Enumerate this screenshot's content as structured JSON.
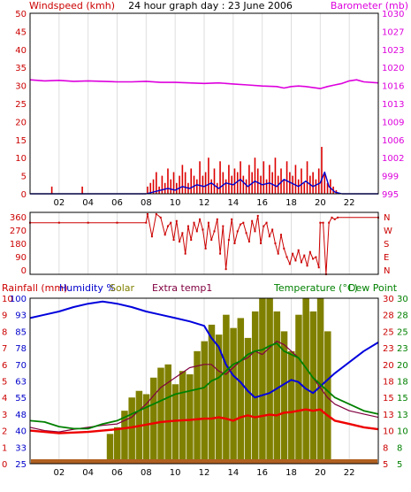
{
  "title": "24 hour graph day : 23 June 2006",
  "colors": {
    "panel_bg": "#ffffff",
    "grid_v": "#dedede",
    "frame": "#000000",
    "wind": "#dd0000",
    "wind_avg": "#0000cc",
    "barometer": "#dd00dd",
    "direction": "#cc0000",
    "rain": "#b06020",
    "humidity": "#0000dd",
    "solar": "#808000",
    "extra_temp": "#800040",
    "temperature": "#ee0000",
    "dew_point": "#008000",
    "label_red": "#cc0000",
    "label_blue": "#0000cc",
    "label_green": "#008000",
    "label_olive": "#808000",
    "label_purple": "#800040",
    "label_magenta": "#dd00dd"
  },
  "x_ticks": [
    "02",
    "04",
    "06",
    "08",
    "10",
    "12",
    "14",
    "16",
    "18",
    "20",
    "22"
  ],
  "chart_data": [
    {
      "type": "line",
      "panel": "wind_baro",
      "left_label": "Windspeed (kmh)",
      "right_label": "Barometer (mb)",
      "xlim": [
        0,
        24
      ],
      "left_ticks": [
        "50",
        "45",
        "40",
        "35",
        "30",
        "25",
        "20",
        "15",
        "10",
        "5",
        "0"
      ],
      "left_ylim": [
        0,
        50
      ],
      "right_ticks": [
        "1030",
        "1027",
        "1023",
        "1020",
        "1016",
        "1013",
        "1009",
        "1006",
        "1002",
        "999",
        "995"
      ],
      "right_ylim": [
        995,
        1030
      ],
      "series": [
        {
          "name": "Windspeed",
          "style": "bars",
          "x": [
            1.5,
            3.6,
            8.1,
            8.3,
            8.5,
            8.7,
            8.9,
            9.1,
            9.3,
            9.5,
            9.7,
            9.9,
            10.1,
            10.3,
            10.5,
            10.7,
            10.9,
            11.1,
            11.3,
            11.5,
            11.7,
            11.9,
            12.1,
            12.3,
            12.5,
            12.7,
            12.9,
            13.1,
            13.3,
            13.5,
            13.7,
            13.9,
            14.1,
            14.3,
            14.5,
            14.7,
            14.9,
            15.1,
            15.3,
            15.5,
            15.7,
            15.9,
            16.1,
            16.3,
            16.5,
            16.7,
            16.9,
            17.1,
            17.3,
            17.5,
            17.7,
            17.9,
            18.1,
            18.3,
            18.5,
            18.7,
            18.9,
            19.1,
            19.3,
            19.5,
            19.7,
            19.9,
            20.1,
            20.3,
            20.5,
            20.7,
            20.9,
            21.1
          ],
          "values": [
            2,
            2,
            2,
            3,
            4,
            6,
            2,
            5,
            3,
            7,
            4,
            6,
            3,
            5,
            8,
            6,
            3,
            7,
            5,
            4,
            9,
            5,
            6,
            10,
            4,
            7,
            3,
            9,
            6,
            4,
            8,
            5,
            7,
            6,
            9,
            5,
            4,
            8,
            6,
            10,
            7,
            5,
            9,
            4,
            8,
            6,
            10,
            5,
            7,
            4,
            9,
            6,
            5,
            8,
            4,
            7,
            3,
            9,
            5,
            6,
            4,
            7,
            13,
            6,
            3,
            4,
            2,
            1
          ]
        },
        {
          "name": "Average wind",
          "style": "line",
          "x": [
            0,
            2,
            4,
            6,
            8,
            8.5,
            9,
            9.5,
            10,
            10.5,
            11,
            11.5,
            12,
            12.5,
            13,
            13.5,
            14,
            14.5,
            15,
            15.5,
            16,
            16.5,
            17,
            17.5,
            18,
            18.5,
            19,
            19.5,
            20,
            20.3,
            20.6,
            21,
            21.5,
            22,
            24
          ],
          "values": [
            0,
            0,
            0,
            0,
            0,
            0.5,
            1,
            1.5,
            1,
            2,
            1.5,
            2.5,
            2,
            3,
            1.5,
            3,
            2.5,
            4,
            2,
            3.5,
            2.5,
            3,
            2,
            4,
            3,
            2,
            3.5,
            2,
            3,
            6,
            2,
            0.5,
            0,
            0,
            0
          ]
        },
        {
          "name": "Barometer",
          "style": "line",
          "axis": "right",
          "x": [
            0,
            1,
            2,
            3,
            4,
            5,
            6,
            7,
            8,
            9,
            10,
            11,
            12,
            13,
            14,
            15,
            16,
            17,
            17.5,
            18,
            18.5,
            19,
            19.5,
            20,
            20.5,
            21,
            21.5,
            22,
            22.5,
            23,
            24
          ],
          "values": [
            1017.1,
            1016.9,
            1017,
            1016.8,
            1016.9,
            1016.8,
            1016.7,
            1016.7,
            1016.8,
            1016.6,
            1016.6,
            1016.5,
            1016.4,
            1016.5,
            1016.3,
            1016.1,
            1015.9,
            1015.8,
            1015.5,
            1015.8,
            1015.9,
            1015.8,
            1015.6,
            1015.4,
            1015.8,
            1016.1,
            1016.4,
            1016.9,
            1017.1,
            1016.7,
            1016.5
          ]
        }
      ]
    },
    {
      "type": "scatter",
      "panel": "direction",
      "xlim": [
        0,
        24
      ],
      "left_ticks": [
        "360",
        "270",
        "180",
        "90",
        "0"
      ],
      "ylim": [
        0,
        360
      ],
      "right_ticks": [
        "N",
        "W",
        "S",
        "E",
        "N"
      ],
      "series": [
        {
          "name": "Wind direction",
          "x": [
            0,
            2,
            4,
            6,
            8,
            8.1,
            8.4,
            8.7,
            9,
            9.3,
            9.5,
            9.7,
            9.9,
            10.1,
            10.3,
            10.5,
            10.7,
            10.9,
            11.1,
            11.3,
            11.5,
            11.7,
            11.9,
            12.1,
            12.3,
            12.5,
            12.7,
            12.9,
            13.1,
            13.3,
            13.5,
            13.7,
            13.9,
            14.1,
            14.3,
            14.5,
            14.7,
            14.9,
            15.1,
            15.3,
            15.5,
            15.7,
            15.9,
            16.1,
            16.3,
            16.5,
            16.7,
            16.9,
            17.1,
            17.3,
            17.5,
            17.7,
            17.9,
            18.1,
            18.3,
            18.5,
            18.7,
            18.9,
            19.1,
            19.3,
            19.5,
            19.7,
            19.9,
            20,
            20.2,
            20.4,
            20.6,
            20.8,
            21,
            21.2,
            24
          ],
          "values": [
            300,
            300,
            300,
            300,
            300,
            350,
            220,
            350,
            330,
            230,
            280,
            300,
            200,
            310,
            190,
            240,
            120,
            280,
            200,
            300,
            250,
            320,
            260,
            150,
            300,
            200,
            250,
            320,
            120,
            280,
            30,
            200,
            320,
            180,
            250,
            290,
            300,
            240,
            190,
            310,
            250,
            340,
            180,
            280,
            300,
            220,
            260,
            180,
            120,
            230,
            150,
            100,
            60,
            120,
            80,
            140,
            70,
            110,
            50,
            130,
            90,
            100,
            40,
            300,
            300,
            0,
            300,
            330,
            320,
            330,
            330
          ]
        }
      ]
    },
    {
      "type": "line",
      "panel": "temp_humidity",
      "xlim": [
        0,
        24
      ],
      "left_header": "Rainfall (mm)",
      "humidity_header": "Humidity %",
      "solar_header": "Solar",
      "extra_header": "Extra temp1",
      "right_header": "Temperature (°C)",
      "dew_header": "Dew Point",
      "rain_ticks": [
        "10",
        "9",
        "8",
        "7",
        "6",
        "5",
        "4",
        "3",
        "2",
        "1",
        "0"
      ],
      "humidity_ticks": [
        "100",
        "93",
        "85",
        "78",
        "70",
        "63",
        "55",
        "48",
        "40",
        "33",
        "25"
      ],
      "temp_ticks": [
        "30",
        "28",
        "25",
        "23",
        "20",
        "18",
        "15",
        "13",
        "10",
        "8",
        "5"
      ],
      "dew_ticks": [
        "30",
        "28",
        "25",
        "23",
        "20",
        "18",
        "15",
        "13",
        "10",
        "8",
        "5"
      ],
      "ylim_temp": [
        5,
        30
      ],
      "ylim_humidity": [
        25,
        100
      ],
      "series": [
        {
          "name": "Rainfall",
          "style": "area",
          "x": [
            0,
            24
          ],
          "values": [
            0.1,
            0.1
          ]
        },
        {
          "name": "Solar",
          "style": "bars",
          "x": [
            5.5,
            6,
            6.5,
            7,
            7.5,
            8,
            8.5,
            9,
            9.5,
            10,
            10.5,
            11,
            11.5,
            12,
            12.5,
            13,
            13.5,
            14,
            14.5,
            15,
            15.5,
            16,
            16.5,
            17,
            17.5,
            18,
            18.5,
            19,
            19.5,
            20,
            20.5
          ],
          "values": [
            9.5,
            10.5,
            13,
            15,
            16,
            15.5,
            18,
            19.5,
            20,
            17,
            19,
            18.5,
            22,
            23.5,
            26,
            24.5,
            27.5,
            25.5,
            27,
            24,
            28,
            30,
            30,
            28,
            25,
            22,
            27.5,
            30,
            28,
            30,
            25
          ]
        },
        {
          "name": "Humidity",
          "style": "line",
          "axis": "humidity",
          "x": [
            0,
            1,
            2,
            3,
            4,
            5,
            6,
            7,
            8,
            9,
            10,
            11,
            12,
            12.5,
            13,
            13.5,
            14,
            14.5,
            15,
            15.5,
            16,
            16.5,
            17,
            17.5,
            18,
            18.5,
            19,
            19.5,
            20,
            20.5,
            21,
            22,
            23,
            24
          ],
          "values": [
            91,
            92.5,
            94,
            96,
            97.5,
            98.5,
            97.5,
            96,
            94,
            92.5,
            91,
            89.5,
            87.5,
            82,
            78,
            70,
            65,
            62,
            58,
            55,
            56,
            57,
            59,
            61,
            63,
            62,
            59,
            57,
            60,
            63,
            66,
            71,
            76,
            80
          ]
        },
        {
          "name": "Extra temp1",
          "style": "line",
          "x": [
            0,
            1,
            2,
            3,
            4,
            5,
            6,
            7,
            8,
            9,
            10,
            11,
            12,
            12.5,
            13,
            13.5,
            14,
            14.5,
            15,
            15.5,
            16,
            16.5,
            17,
            17.5,
            18,
            18.5,
            19,
            19.5,
            20,
            20.5,
            21,
            22,
            23,
            24
          ],
          "values": [
            10.5,
            10,
            9.8,
            10.2,
            10.5,
            10.8,
            11,
            12,
            14,
            16.5,
            18,
            19.5,
            20,
            20,
            19,
            18.5,
            19.5,
            20.5,
            21,
            22,
            21.5,
            22.5,
            23.5,
            23,
            22,
            21,
            19.5,
            18,
            16.5,
            15,
            14,
            13,
            12.5,
            12
          ]
        },
        {
          "name": "Dew Point",
          "style": "line",
          "x": [
            0,
            1,
            2,
            3,
            4,
            5,
            6,
            7,
            8,
            9,
            10,
            11,
            12,
            12.5,
            13,
            13.5,
            14,
            14.5,
            15,
            15.5,
            16,
            16.5,
            17,
            17.5,
            18,
            18.5,
            19,
            19.5,
            20,
            20.5,
            21,
            22,
            23,
            24
          ],
          "values": [
            11.5,
            11.3,
            10.6,
            10.3,
            10.3,
            11,
            11.5,
            12.5,
            13.5,
            14.5,
            15.5,
            16,
            16.5,
            17.5,
            18,
            19,
            20,
            20.5,
            21.5,
            22,
            22.2,
            22.8,
            23.2,
            22,
            21.5,
            21,
            19.5,
            18,
            17,
            16,
            15,
            14,
            13,
            12.5
          ]
        },
        {
          "name": "Temperature",
          "style": "line",
          "x": [
            0,
            1,
            2,
            3,
            4,
            5,
            6,
            7,
            8,
            9,
            10,
            11,
            12,
            12.5,
            13,
            13.5,
            14,
            14.5,
            15,
            15.5,
            16,
            16.5,
            17,
            17.5,
            18,
            18.5,
            19,
            19.5,
            20,
            20.5,
            21,
            22,
            23,
            24
          ],
          "values": [
            10,
            9.8,
            9.6,
            9.7,
            9.8,
            10,
            10.2,
            10.5,
            10.9,
            11.3,
            11.5,
            11.6,
            11.8,
            11.8,
            12,
            11.8,
            11.5,
            12,
            12.3,
            12,
            12.2,
            12.4,
            12.3,
            12.7,
            12.8,
            13,
            13.2,
            13,
            13.2,
            12.3,
            11.5,
            11,
            10.5,
            10.2
          ]
        }
      ]
    }
  ]
}
